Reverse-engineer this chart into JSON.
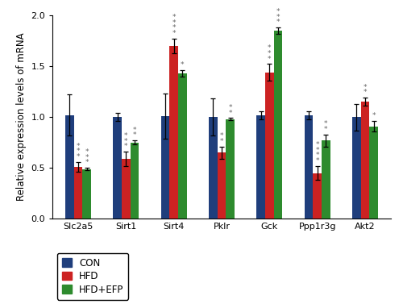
{
  "categories": [
    "Slc2a5",
    "Sirt1",
    "Sirt4",
    "Pklr",
    "Gck",
    "Ppp1r3g",
    "Akt2"
  ],
  "con_values": [
    1.02,
    1.0,
    1.01,
    1.0,
    1.02,
    1.02,
    1.0
  ],
  "hfd_values": [
    0.51,
    0.59,
    1.7,
    0.65,
    1.44,
    0.45,
    1.15
  ],
  "efp_values": [
    0.49,
    0.75,
    1.43,
    0.98,
    1.85,
    0.77,
    0.91
  ],
  "con_errors": [
    0.2,
    0.04,
    0.22,
    0.18,
    0.04,
    0.04,
    0.13
  ],
  "hfd_errors": [
    0.05,
    0.07,
    0.07,
    0.06,
    0.08,
    0.07,
    0.04
  ],
  "efp_errors": [
    0.01,
    0.02,
    0.03,
    0.01,
    0.03,
    0.06,
    0.05
  ],
  "con_color": "#1f3e7c",
  "hfd_color": "#cc2222",
  "efp_color": "#2e8b2e",
  "ylabel": "Relative expression levels of mRNA",
  "ylim": [
    0.0,
    2.0
  ],
  "yticks": [
    0.0,
    0.5,
    1.0,
    1.5,
    2.0
  ],
  "legend_labels": [
    "CON",
    "HFD",
    "HFD+EFP"
  ],
  "bar_width": 0.18,
  "star_annotations": {
    "Slc2a5": {
      "hfd": "***",
      "efp": "***"
    },
    "Sirt1": {
      "hfd": "***",
      "efp": "**"
    },
    "Sirt4": {
      "hfd": "****",
      "efp": "*"
    },
    "Pklr": {
      "hfd": "**",
      "efp": "**"
    },
    "Gck": {
      "hfd": "***",
      "efp": "***"
    },
    "Ppp1r3g": {
      "hfd": "****",
      "efp": "**"
    },
    "Akt2": {
      "hfd": "**",
      "efp": "*"
    }
  },
  "error_capsize": 2.5,
  "error_linewidth": 0.9,
  "star_fontsize": 6.5,
  "axis_fontsize": 8.5,
  "tick_fontsize": 8,
  "legend_fontsize": 8.5
}
